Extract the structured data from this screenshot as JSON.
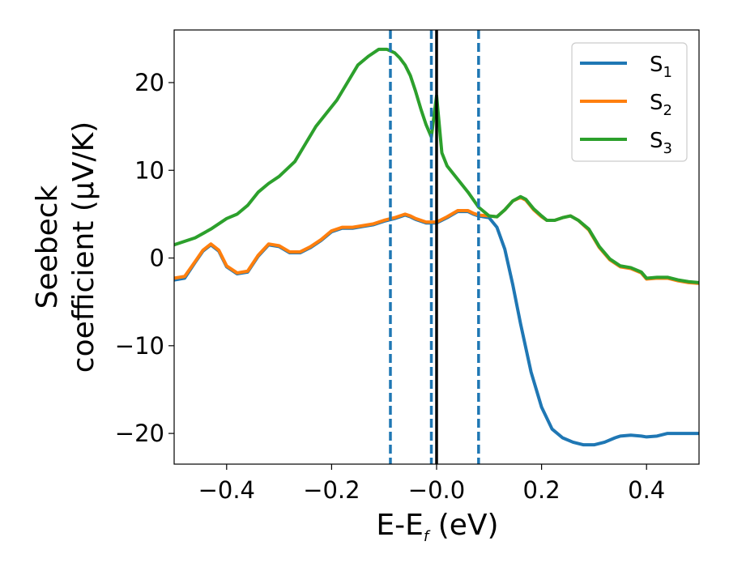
{
  "chart_data": {
    "type": "line",
    "xlabel": {
      "main": "E-E",
      "sub": "f",
      "unit": " (eV)"
    },
    "ylabel": [
      "Seebeck",
      "coefficient  (μV/K)"
    ],
    "xlim": [
      -0.5,
      0.5
    ],
    "ylim": [
      -23.5,
      26.0
    ],
    "xticks": [
      -0.4,
      -0.2,
      0.0,
      0.2,
      0.4
    ],
    "xtick_labels": [
      "−0.4",
      "−0.2",
      "−0.0",
      "0.2",
      "0.4"
    ],
    "yticks": [
      -20,
      -10,
      0,
      10,
      20
    ],
    "ytick_labels": [
      "−20",
      "−10",
      "0",
      "10",
      "20"
    ],
    "grid": false,
    "legend_position": "top-right",
    "vlines_dashed": [
      -0.088,
      -0.01,
      0.08
    ],
    "vline_solid": [
      0.0
    ],
    "colors": {
      "S1": "#1f77b4",
      "S2": "#ff7f0e",
      "S3": "#2ca02c",
      "solid": "#000000"
    },
    "series": [
      {
        "name": "S",
        "sub": "1",
        "key": "S1",
        "x": [
          -0.5,
          -0.48,
          -0.46,
          -0.445,
          -0.43,
          -0.415,
          -0.4,
          -0.38,
          -0.36,
          -0.34,
          -0.32,
          -0.3,
          -0.28,
          -0.26,
          -0.24,
          -0.22,
          -0.2,
          -0.18,
          -0.16,
          -0.14,
          -0.12,
          -0.1,
          -0.08,
          -0.06,
          -0.05,
          -0.04,
          -0.02,
          0.0,
          0.02,
          0.04,
          0.06,
          0.07,
          0.08,
          0.1,
          0.115,
          0.13,
          0.145,
          0.16,
          0.18,
          0.2,
          0.22,
          0.24,
          0.26,
          0.28,
          0.3,
          0.32,
          0.34,
          0.35,
          0.37,
          0.39,
          0.4,
          0.42,
          0.44,
          0.46,
          0.48,
          0.5
        ],
        "y": [
          -2.5,
          -2.3,
          -0.5,
          0.8,
          1.5,
          0.8,
          -1.0,
          -1.8,
          -1.6,
          0.2,
          1.5,
          1.3,
          0.6,
          0.6,
          1.2,
          2.0,
          3.0,
          3.4,
          3.4,
          3.6,
          3.8,
          4.2,
          4.5,
          4.9,
          4.7,
          4.4,
          4.0,
          4.0,
          4.6,
          5.3,
          5.3,
          5.0,
          4.8,
          4.6,
          3.5,
          1.0,
          -3.0,
          -7.5,
          -13.0,
          -17.0,
          -19.5,
          -20.5,
          -21.0,
          -21.3,
          -21.3,
          -21.0,
          -20.5,
          -20.3,
          -20.2,
          -20.3,
          -20.4,
          -20.3,
          -20.0,
          -20.0,
          -20.0,
          -20.0
        ]
      },
      {
        "name": "S",
        "sub": "2",
        "key": "S2",
        "x": [
          -0.5,
          -0.48,
          -0.46,
          -0.445,
          -0.43,
          -0.415,
          -0.4,
          -0.38,
          -0.36,
          -0.34,
          -0.32,
          -0.3,
          -0.28,
          -0.26,
          -0.24,
          -0.22,
          -0.2,
          -0.18,
          -0.16,
          -0.14,
          -0.12,
          -0.1,
          -0.08,
          -0.06,
          -0.05,
          -0.04,
          -0.02,
          0.0,
          0.02,
          0.04,
          0.06,
          0.07,
          0.08,
          0.1,
          0.115,
          0.13,
          0.145,
          0.16,
          0.17,
          0.185,
          0.2,
          0.21,
          0.225,
          0.24,
          0.255,
          0.27,
          0.29,
          0.31,
          0.33,
          0.35,
          0.37,
          0.39,
          0.4,
          0.42,
          0.44,
          0.46,
          0.48,
          0.5
        ],
        "y": [
          -2.3,
          -2.1,
          -0.4,
          0.9,
          1.6,
          0.9,
          -0.9,
          -1.7,
          -1.5,
          0.3,
          1.6,
          1.4,
          0.7,
          0.7,
          1.3,
          2.1,
          3.1,
          3.5,
          3.5,
          3.7,
          3.9,
          4.3,
          4.6,
          5.0,
          4.8,
          4.5,
          4.1,
          4.1,
          4.7,
          5.4,
          5.4,
          5.1,
          4.9,
          4.8,
          4.7,
          5.5,
          6.5,
          6.9,
          6.6,
          5.5,
          4.7,
          4.3,
          4.3,
          4.6,
          4.8,
          4.3,
          3.2,
          1.2,
          -0.2,
          -1.0,
          -1.2,
          -1.7,
          -2.4,
          -2.3,
          -2.3,
          -2.6,
          -2.8,
          -2.9
        ]
      },
      {
        "name": "S",
        "sub": "3",
        "key": "S3",
        "x": [
          -0.5,
          -0.46,
          -0.43,
          -0.4,
          -0.38,
          -0.36,
          -0.34,
          -0.32,
          -0.3,
          -0.27,
          -0.25,
          -0.23,
          -0.21,
          -0.19,
          -0.17,
          -0.15,
          -0.13,
          -0.11,
          -0.095,
          -0.08,
          -0.07,
          -0.06,
          -0.05,
          -0.04,
          -0.03,
          -0.02,
          -0.01,
          0.0,
          0.01,
          0.02,
          0.04,
          0.06,
          0.08,
          0.1,
          0.115,
          0.13,
          0.145,
          0.16,
          0.17,
          0.185,
          0.2,
          0.21,
          0.225,
          0.24,
          0.255,
          0.27,
          0.29,
          0.31,
          0.33,
          0.35,
          0.37,
          0.39,
          0.4,
          0.42,
          0.44,
          0.46,
          0.48,
          0.5
        ],
        "y": [
          1.5,
          2.3,
          3.3,
          4.5,
          5.0,
          6.0,
          7.5,
          8.5,
          9.3,
          11.0,
          13.0,
          15.0,
          16.5,
          18.0,
          20.0,
          22.0,
          23.0,
          23.8,
          23.8,
          23.4,
          22.8,
          22.0,
          20.8,
          19.0,
          17.0,
          15.2,
          13.8,
          18.5,
          12.0,
          10.5,
          9.0,
          7.5,
          5.8,
          4.8,
          4.7,
          5.5,
          6.5,
          7.0,
          6.7,
          5.6,
          4.8,
          4.3,
          4.3,
          4.6,
          4.8,
          4.3,
          3.3,
          1.3,
          -0.1,
          -0.9,
          -1.1,
          -1.6,
          -2.3,
          -2.2,
          -2.2,
          -2.5,
          -2.7,
          -2.8
        ]
      }
    ]
  }
}
